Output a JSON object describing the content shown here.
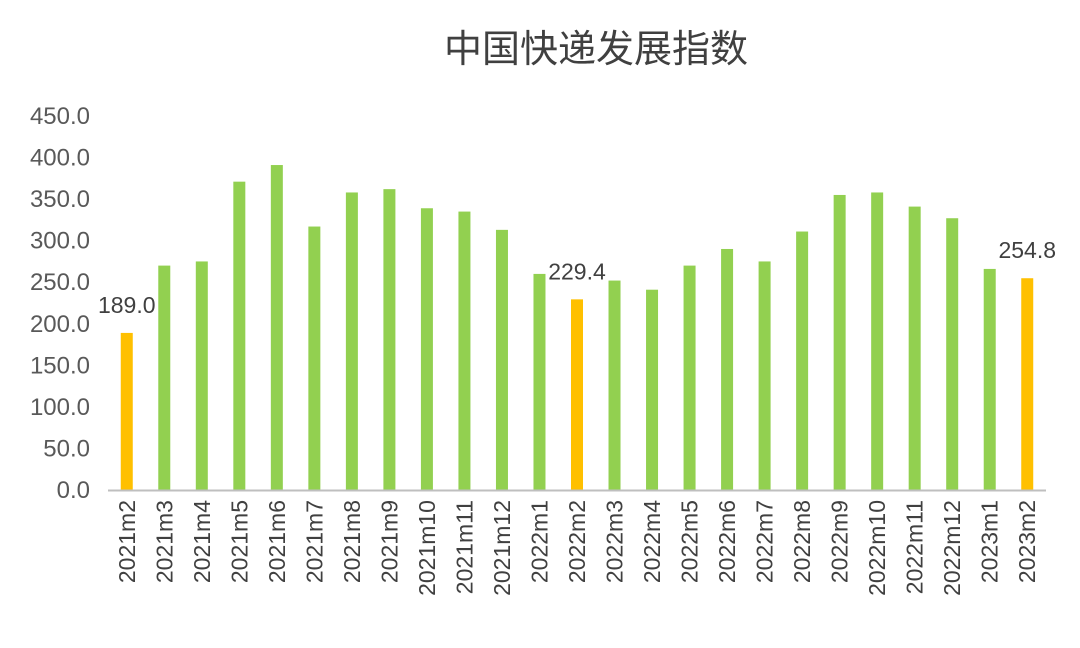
{
  "chart_data": {
    "type": "bar",
    "title": "中国快递发展指数",
    "xlabel": "",
    "ylabel": "",
    "ylim": [
      0,
      450
    ],
    "yticks": [
      "0.0",
      "50.0",
      "100.0",
      "150.0",
      "200.0",
      "250.0",
      "300.0",
      "350.0",
      "400.0",
      "450.0"
    ],
    "grid": false,
    "legend": "none",
    "categories": [
      "2021m2",
      "2021m3",
      "2021m4",
      "2021m5",
      "2021m6",
      "2021m7",
      "2021m8",
      "2021m9",
      "2021m10",
      "2021m11",
      "2021m12",
      "2022m1",
      "2022m2",
      "2022m3",
      "2022m4",
      "2022m5",
      "2022m6",
      "2022m7",
      "2022m8",
      "2022m9",
      "2022m10",
      "2022m11",
      "2022m12",
      "2023m1",
      "2023m2"
    ],
    "values": [
      189.0,
      270,
      275,
      371,
      391,
      317,
      358,
      362,
      339,
      335,
      313,
      260,
      229.4,
      252,
      241,
      270,
      290,
      275,
      311,
      355,
      358,
      341,
      327,
      266,
      254.8
    ],
    "highlighted": [
      "2021m2",
      "2022m2",
      "2023m2"
    ],
    "data_labels": {
      "2021m2": "189.0",
      "2022m2": "229.4",
      "2023m2": "254.8"
    },
    "colors": {
      "default_bar": "#92D050",
      "highlight_bar": "#FFC000",
      "axis": "#BFBFBF"
    }
  }
}
